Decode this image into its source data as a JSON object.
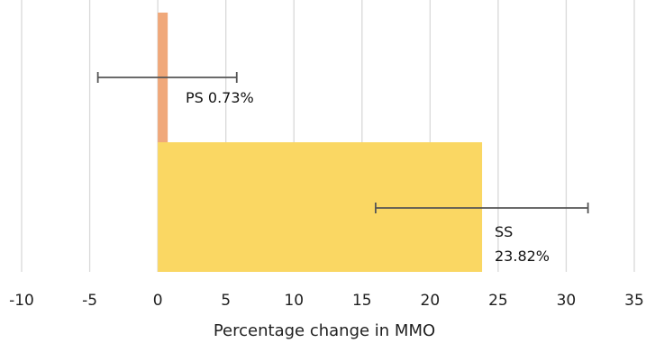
{
  "chart_data": {
    "type": "bar",
    "orientation": "horizontal",
    "categories": [
      "SS",
      "PS"
    ],
    "values": [
      23.82,
      0.73
    ],
    "error_bars": [
      {
        "category": "SS",
        "low": 16.0,
        "high": 31.6
      },
      {
        "category": "PS",
        "low": -4.4,
        "high": 5.8
      }
    ],
    "colors": [
      "#FAD763",
      "#F0A87A"
    ],
    "errorbar_color": "#555555",
    "data_labels": [
      {
        "category": "SS",
        "name": "SS",
        "value": "23.82%"
      },
      {
        "category": "PS",
        "name": "PS",
        "value": "0.73%"
      }
    ],
    "xlabel": "Percentage change in MMO",
    "ylabel": "",
    "title": "",
    "xlim": [
      -10,
      35
    ],
    "xticks": [
      -10,
      -5,
      0,
      5,
      10,
      15,
      20,
      25,
      30,
      35
    ],
    "xtick_labels": [
      "-10",
      "-5",
      "0",
      "5",
      "10",
      "15",
      "20",
      "25",
      "30",
      "35"
    ],
    "grid": "vertical",
    "grid_color": "#D9D9D9"
  }
}
